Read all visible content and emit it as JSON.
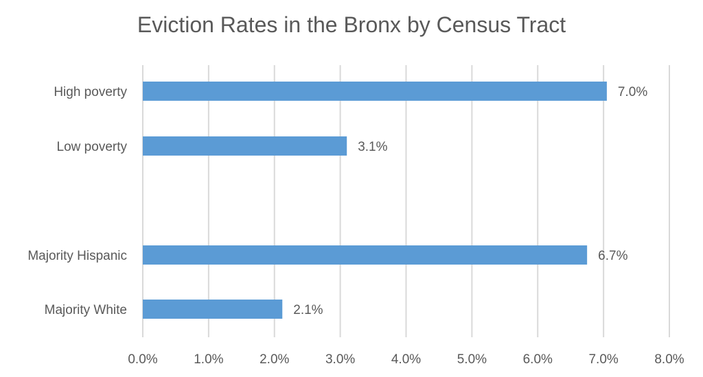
{
  "chart_data": {
    "type": "bar",
    "orientation": "horizontal",
    "title": "Eviction Rates in the Bronx by Census Tract",
    "xlabel": "",
    "ylabel": "",
    "categories": [
      "High poverty",
      "Low poverty",
      "",
      "Majority Hispanic",
      "Majority White"
    ],
    "values": [
      7.05,
      3.1,
      null,
      6.75,
      2.12
    ],
    "data_labels": [
      "7.0%",
      "3.1%",
      "",
      "6.7%",
      "2.1%"
    ],
    "xlim": [
      0,
      8
    ],
    "x_ticks": [
      "0.0%",
      "1.0%",
      "2.0%",
      "3.0%",
      "4.0%",
      "5.0%",
      "6.0%",
      "7.0%",
      "8.0%"
    ],
    "grid": "vertical",
    "legend": "none",
    "bar_color": "#5B9BD5",
    "gridline_color": "#D9D9D9",
    "text_color": "#595959"
  }
}
